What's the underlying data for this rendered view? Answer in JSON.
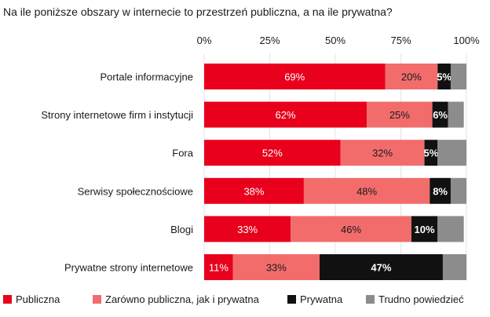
{
  "chart_data": {
    "type": "bar",
    "orientation": "horizontal",
    "stacked": true,
    "title": "Na ile poniższe obszary w internecie to przestrzeń publiczna, a na ile prywatna?",
    "xlim": [
      0,
      100
    ],
    "x_ticks": [
      "0%",
      "25%",
      "50%",
      "75%",
      "100%"
    ],
    "x_tick_values": [
      0,
      25,
      50,
      75,
      100
    ],
    "grid": true,
    "legend_position": "bottom",
    "categories": [
      "Portale informacyjne",
      "Strony internetowe firm i instytucji",
      "Fora",
      "Serwisy społecznościowe",
      "Blogi",
      "Prywatne strony internetowe"
    ],
    "series": [
      {
        "name": "Publiczna",
        "color": "#e8001c",
        "text_color": "#ffffff",
        "values": [
          69,
          62,
          52,
          38,
          33,
          11
        ],
        "labels": [
          "69%",
          "62%",
          "52%",
          "38%",
          "33%",
          "11%"
        ]
      },
      {
        "name": "Zarówno publiczna, jak i prywatna",
        "color": "#f26c6c",
        "text_color": "#1a1a1a",
        "values": [
          20,
          25,
          32,
          48,
          46,
          33
        ],
        "labels": [
          "20%",
          "25%",
          "32%",
          "48%",
          "46%",
          "33%"
        ]
      },
      {
        "name": "Prywatna",
        "color": "#111111",
        "text_color": "#ffffff",
        "values": [
          5,
          6,
          5,
          8,
          10,
          47
        ],
        "labels": [
          "5%",
          "6%",
          "5%",
          "8%",
          "10%",
          "47%"
        ]
      },
      {
        "name": "Trudno powiedzieć",
        "color": "#8c8c8c",
        "text_color": "#ffffff",
        "values": [
          6,
          6,
          11,
          6,
          10,
          9
        ],
        "labels": [
          "",
          "",
          "",
          "",
          "",
          ""
        ]
      }
    ]
  }
}
